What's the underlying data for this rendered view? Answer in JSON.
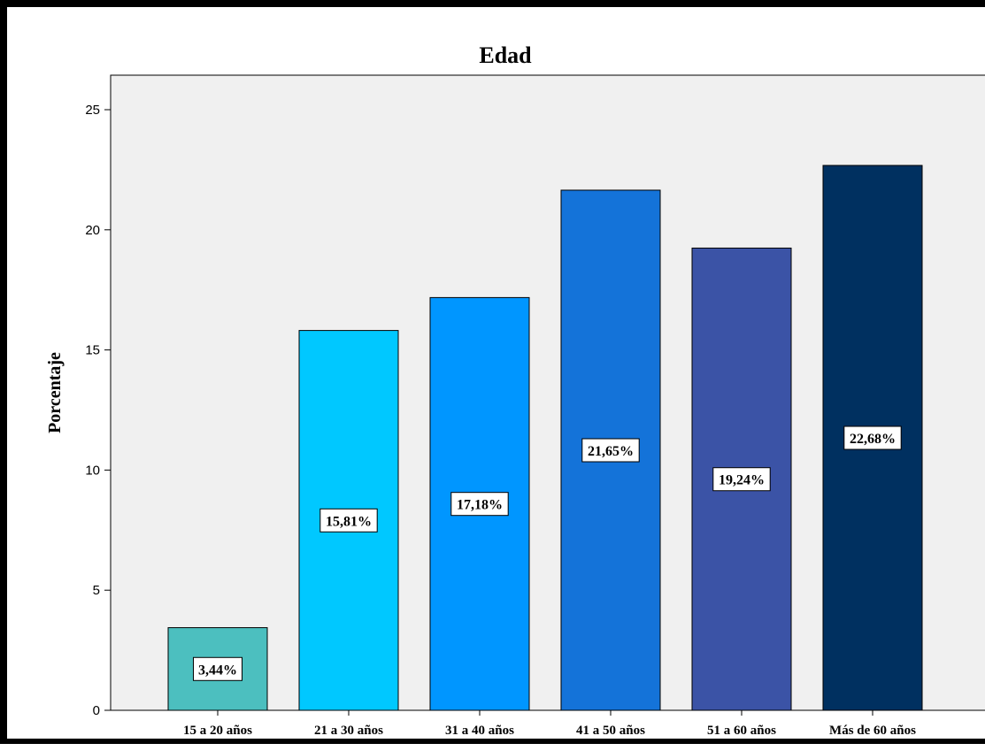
{
  "chart_data": {
    "type": "bar",
    "title": "Edad",
    "xlabel": "",
    "ylabel": "Porcentaje",
    "ylim": [
      0,
      26
    ],
    "yticks": [
      0,
      5,
      10,
      15,
      20,
      25
    ],
    "grid": false,
    "categories": [
      "15 a 20 años",
      "21 a 30 años",
      "31 a 40 años",
      "41 a 50 años",
      "51 a 60 años",
      "Más de 60 años"
    ],
    "values": [
      3.44,
      15.81,
      17.18,
      21.65,
      19.24,
      22.68
    ],
    "data_labels": [
      "3,44%",
      "15,81%",
      "17,18%",
      "21,65%",
      "19,24%",
      "22,68%"
    ],
    "colors": [
      "#4cbfbf",
      "#00c8ff",
      "#0096ff",
      "#1473d9",
      "#3b53a6",
      "#003060"
    ],
    "plot_background": "#f0f0f0"
  }
}
